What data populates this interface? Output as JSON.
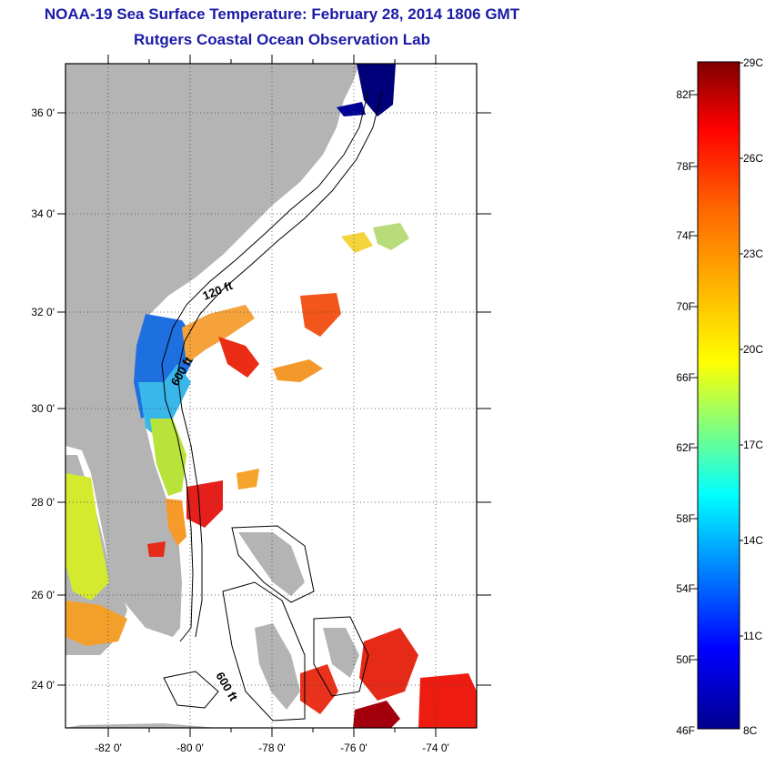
{
  "header": {
    "title": "NOAA-19 Sea Surface Temperature:  February 28, 2014 1806 GMT",
    "subtitle": "Rutgers Coastal Ocean Observation Lab"
  },
  "map": {
    "lat_labels": [
      "36 0'",
      "34 0'",
      "32 0'",
      "30 0'",
      "28 0'",
      "26 0'",
      "24 0'"
    ],
    "lon_labels": [
      "-82 0'",
      "-80 0'",
      "-78 0'",
      "-76 0'",
      "-74 0'"
    ],
    "contour_labels": {
      "c120": "120 ft",
      "c600a": "600 ft",
      "c600b": "600 ft"
    },
    "land_color": "#b4b4b4"
  },
  "colorbar": {
    "fahrenheit": [
      "82F",
      "78F",
      "74F",
      "70F",
      "66F",
      "62F",
      "58F",
      "54F",
      "50F",
      "46F"
    ],
    "celsius": [
      "29C",
      "26C",
      "23C",
      "20C",
      "17C",
      "14C",
      "11C",
      "8C"
    ]
  }
}
